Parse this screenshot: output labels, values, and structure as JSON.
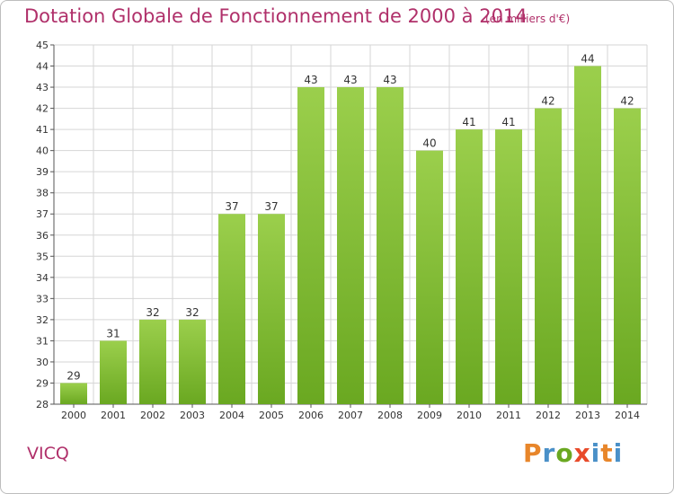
{
  "header": {
    "title": "Dotation Globale de Fonctionnement de 2000 à 2014",
    "subtitle": "(en milliers d'€)"
  },
  "footer": {
    "commune": "VICQ",
    "logo_text": "Proxiti"
  },
  "colors": {
    "accent": "#b0306a",
    "bar_light": "#9bcf4c",
    "bar_dark": "#6aa821",
    "grid": "#d6d6d6",
    "logo_letters": [
      "#e8862a",
      "#4a90c8",
      "#6aa821",
      "#e84a2a",
      "#4a90c8",
      "#e8862a",
      "#4a90c8"
    ]
  },
  "chart_data": {
    "type": "bar",
    "title": "Dotation Globale de Fonctionnement de 2000 à 2014",
    "subtitle": "(en milliers d'€)",
    "categories": [
      "2000",
      "2001",
      "2002",
      "2003",
      "2004",
      "2005",
      "2006",
      "2007",
      "2008",
      "2009",
      "2010",
      "2011",
      "2012",
      "2013",
      "2014"
    ],
    "values": [
      29,
      31,
      32,
      32,
      37,
      37,
      43,
      43,
      43,
      40,
      41,
      41,
      42,
      44,
      42
    ],
    "ylim": [
      28,
      45
    ],
    "yticks": [
      28,
      29,
      30,
      31,
      32,
      33,
      34,
      35,
      36,
      37,
      38,
      39,
      40,
      41,
      42,
      43,
      44,
      45
    ],
    "grid": true,
    "data_labels": true
  }
}
